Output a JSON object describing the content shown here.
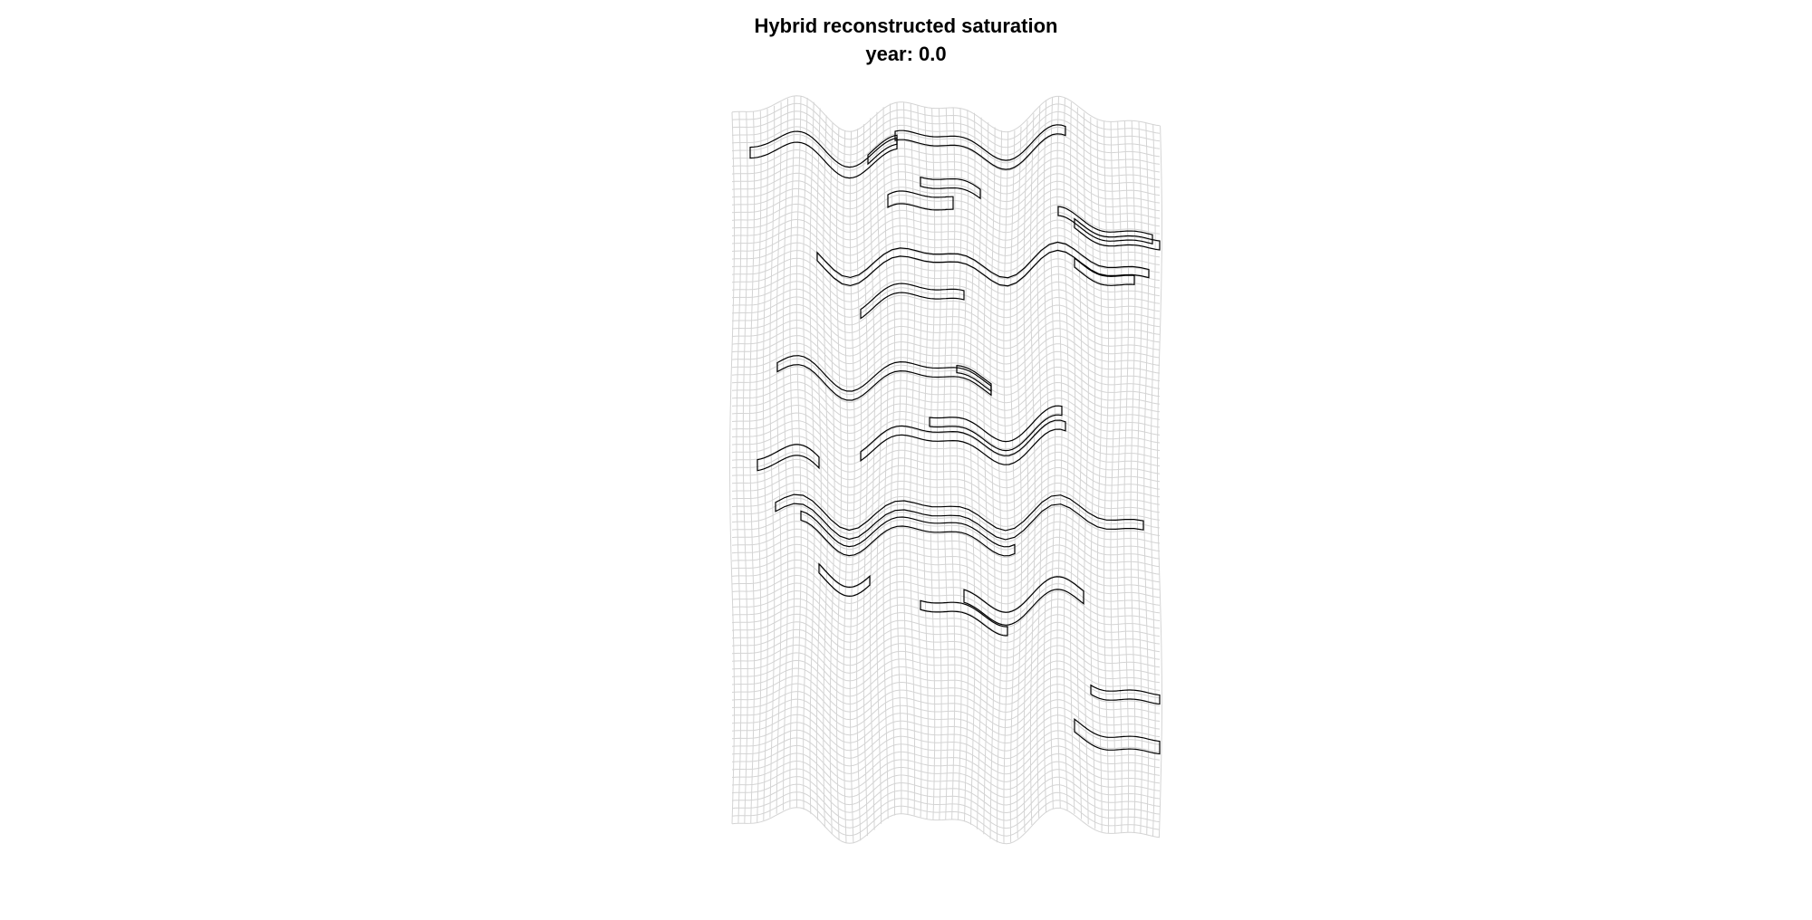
{
  "figure": {
    "title": "Hybrid reconstructed saturation",
    "subtitle": "year: 0.0"
  },
  "colors": {
    "background": "#ffffff",
    "grid": "#d4d4d4",
    "outline": "#000000",
    "text": "#000000"
  },
  "diagram": {
    "type": "reservoir-grid-with-layer-outlines",
    "grid_lines_visible": true
  }
}
